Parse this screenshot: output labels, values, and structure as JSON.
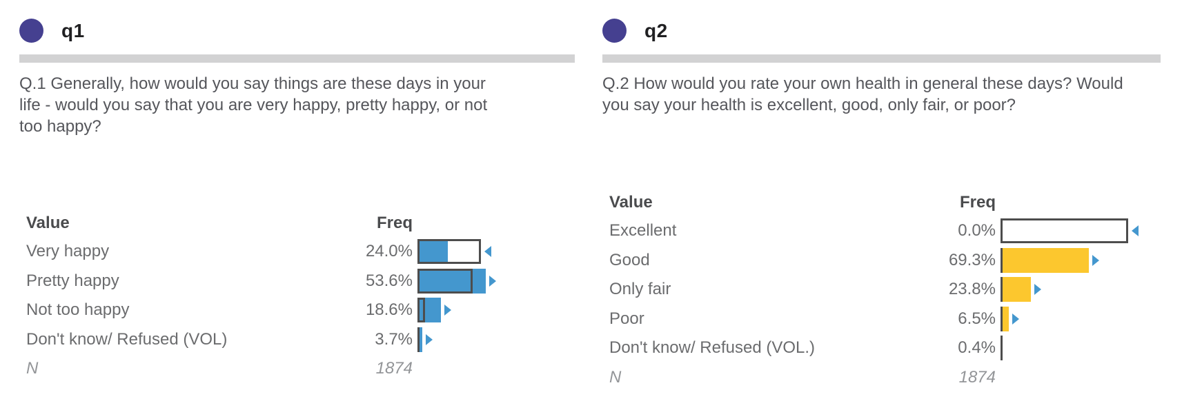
{
  "colors": {
    "accent_purple": "#454090",
    "bar_blue": "#4497CE",
    "bar_yellow": "#FCC72E",
    "reference_outline": "#4D4D4D",
    "divider_gray": "#D2D2D3",
    "text_dark": "#202022",
    "text_question": "#55565B",
    "text_muted": "#6B6C6E",
    "text_n": "#939598"
  },
  "panels": [
    {
      "id": "q1",
      "title": "q1",
      "question": "Q.1 Generally, how would you say things are these days in your life - would you say that you are very happy, pretty happy, or not too happy?",
      "value_header": "Value",
      "freq_header": "Freq",
      "n_label": "N",
      "n_value": "1874"
    },
    {
      "id": "q2",
      "title": "q2",
      "question": "Q.2 How would you rate your own health in general these days? Would you say your health is excellent, good, only fair, or poor?",
      "value_header": "Value",
      "freq_header": "Freq",
      "n_label": "N",
      "n_value": "1874"
    }
  ],
  "chart_data": [
    {
      "type": "bar",
      "orientation": "horizontal",
      "title": "q1",
      "categories": [
        "Very happy",
        "Pretty happy",
        "Not too happy",
        "Don't know/ Refused (VOL)"
      ],
      "values": [
        24.0,
        53.6,
        18.6,
        3.7
      ],
      "freq_labels": [
        "24.0%",
        "53.6%",
        "18.6%",
        "3.7%"
      ],
      "reference_values": [
        49.7,
        43.2,
        5.9,
        0.0
      ],
      "markers": [
        "left",
        "right",
        "right",
        "right"
      ],
      "n": 1874,
      "bar_color": "#4497CE",
      "marker_color": "#4497CE",
      "xlim": [
        0,
        100
      ],
      "xlabel": "Freq",
      "ylabel": "Value"
    },
    {
      "type": "bar",
      "orientation": "horizontal",
      "title": "q2",
      "categories": [
        "Excellent",
        "Good",
        "Only fair",
        "Poor",
        "Don't know/ Refused (VOL.)"
      ],
      "values": [
        0.0,
        69.3,
        23.8,
        6.5,
        0.4
      ],
      "freq_labels": [
        "0.0%",
        "69.3%",
        "23.8%",
        "6.5%",
        "0.4%"
      ],
      "reference_values": [
        100.0,
        0.0,
        0.0,
        0.0,
        0.0
      ],
      "markers": [
        "left",
        "right",
        "right",
        "right",
        "none"
      ],
      "n": 1874,
      "bar_color": "#FCC72E",
      "marker_color": "#4497CE",
      "xlim": [
        0,
        100
      ],
      "xlabel": "Freq",
      "ylabel": "Value"
    }
  ]
}
